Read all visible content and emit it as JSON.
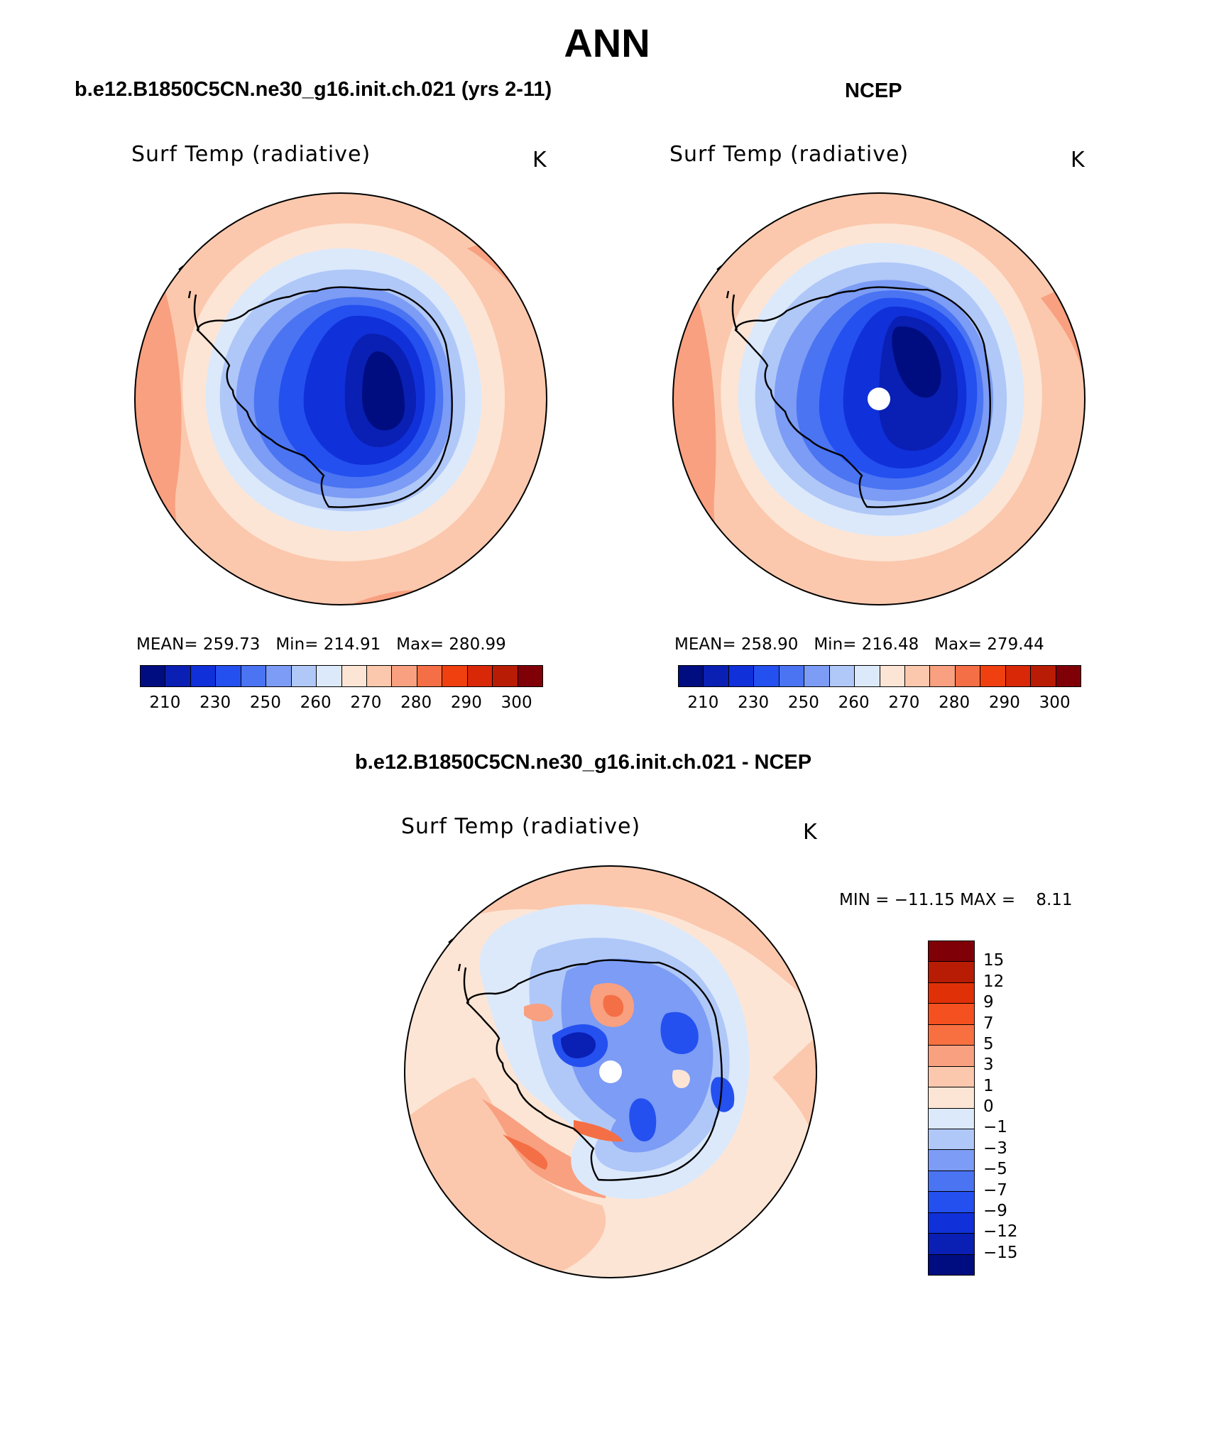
{
  "title": "ANN",
  "panels": [
    {
      "case_title": "b.e12.B1850C5CN.ne30_g16.init.ch.021 (yrs 2-11)",
      "var_label": "Surf Temp (radiative)",
      "units": "K",
      "stats": {
        "mean_label": "MEAN=",
        "mean": "259.73",
        "min_label": "Min=",
        "min": "214.91",
        "max_label": "Max=",
        "max": "280.99"
      },
      "colorbar": {
        "colors": [
          "#000d80",
          "#0a1fb3",
          "#1030d9",
          "#2450f0",
          "#4a74f2",
          "#7c9cf5",
          "#b0c8f8",
          "#dce9fb",
          "#fde5d5",
          "#fbc8ad",
          "#f8a080",
          "#f46f45",
          "#f04010",
          "#d82808",
          "#b81c04",
          "#800008"
        ],
        "labels": [
          "210",
          "230",
          "250",
          "260",
          "270",
          "280",
          "290",
          "300"
        ]
      }
    },
    {
      "case_title": "NCEP",
      "var_label": "Surf Temp (radiative)",
      "units": "K",
      "stats": {
        "mean_label": "MEAN=",
        "mean": "258.90",
        "min_label": "Min=",
        "min": "216.48",
        "max_label": "Max=",
        "max": "279.44"
      },
      "colorbar": {
        "colors": [
          "#000d80",
          "#0a1fb3",
          "#1030d9",
          "#2450f0",
          "#4a74f2",
          "#7c9cf5",
          "#b0c8f8",
          "#dce9fb",
          "#fde5d5",
          "#fbc8ad",
          "#f8a080",
          "#f46f45",
          "#f04010",
          "#d82808",
          "#b81c04",
          "#800008"
        ],
        "labels": [
          "210",
          "230",
          "250",
          "260",
          "270",
          "280",
          "290",
          "300"
        ]
      }
    }
  ],
  "diff_panel": {
    "case_title": "b.e12.B1850C5CN.ne30_g16.init.ch.021 - NCEP",
    "var_label": "Surf Temp (radiative)",
    "units": "K",
    "stats": {
      "min_label": "MIN =",
      "min": "−11.15",
      "max_label": "MAX =",
      "max": "8.11"
    },
    "colorbar": {
      "colors": [
        "#800008",
        "#b81c04",
        "#e03008",
        "#f45020",
        "#f87040",
        "#f8a080",
        "#fbc8ad",
        "#fde5d5",
        "#dce9fb",
        "#b0c8f8",
        "#7c9cf5",
        "#4a74f2",
        "#2450f0",
        "#1030d9",
        "#0a1fb3",
        "#000d80"
      ],
      "labels": [
        "15",
        "12",
        "9",
        "7",
        "5",
        "3",
        "1",
        "0",
        "−1",
        "−3",
        "−5",
        "−7",
        "−9",
        "−12",
        "−15"
      ]
    }
  }
}
